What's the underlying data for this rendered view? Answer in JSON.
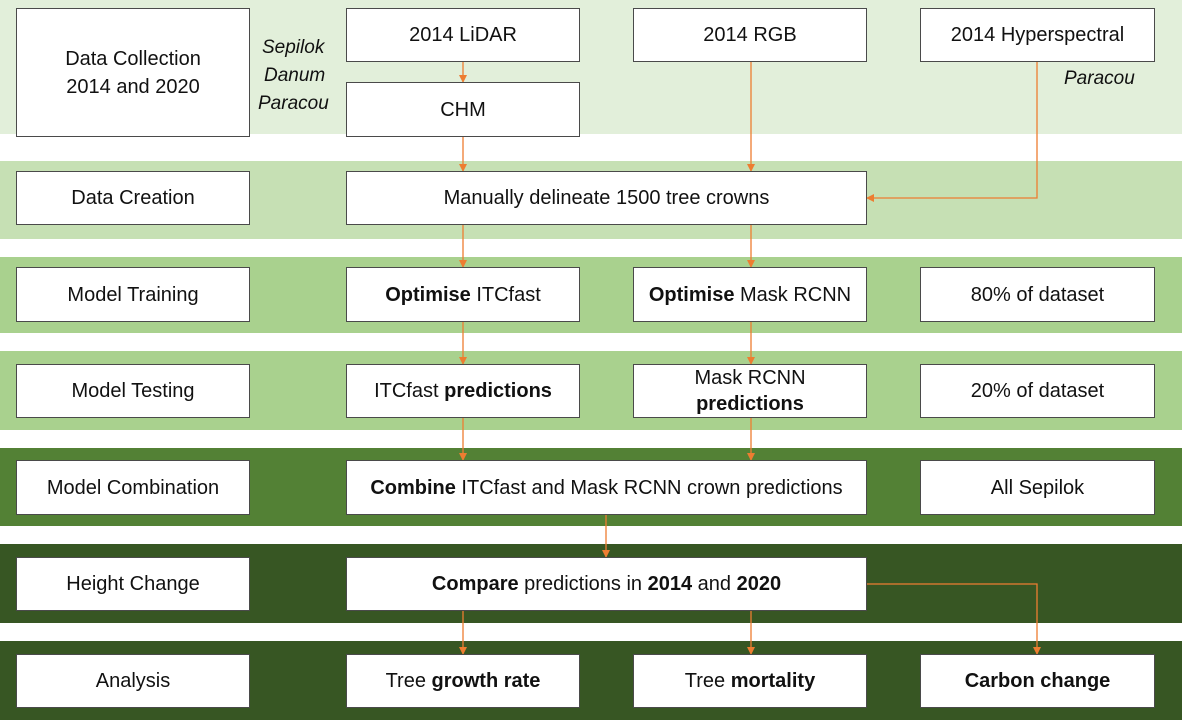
{
  "colors": {
    "band_1": "#e2efda",
    "band_2": "#c6e0b4",
    "band_3": "#a9d18e",
    "band_4": "#a9d18e",
    "band_5": "#538135",
    "band_6": "#375623",
    "band_7": "#375623",
    "arrow": "#ed7d31",
    "box_border": "#4a4a4a"
  },
  "stages": {
    "collection": "Data Collection\n2014 and 2020",
    "creation": "Data Creation",
    "training": "Model Training",
    "testing": "Model Testing",
    "combination": "Model Combination",
    "height_change": "Height Change",
    "analysis": "Analysis"
  },
  "sites": {
    "sepilok": "Sepilok",
    "danum": "Danum",
    "paracou": "Paracou",
    "paracou_hyper": "Paracou"
  },
  "collection": {
    "lidar": "2014 LiDAR",
    "chm": "CHM",
    "rgb": "2014 RGB",
    "hyper": "2014 Hyperspectral"
  },
  "creation": {
    "delineate": "Manually delineate 1500 tree crowns"
  },
  "training": {
    "itc_bold": "Optimise",
    "itc_rest": " ITCfast",
    "mask_bold": "Optimise",
    "mask_rest": " Mask RCNN",
    "share": "80% of dataset"
  },
  "testing": {
    "itc_rest": "ITCfast ",
    "itc_bold": "predictions",
    "mask_rest": "Mask RCNN",
    "mask_bold": "predictions",
    "share": "20% of dataset"
  },
  "combination": {
    "combine_bold": "Combine",
    "combine_rest": " ITCfast and Mask RCNN crown predictions",
    "scope": "All Sepilok"
  },
  "height_change": {
    "compare_bold": "Compare",
    "compare_mid": " predictions in ",
    "year_1": "2014",
    "compare_and": " and ",
    "year_2": "2020"
  },
  "analysis": {
    "growth_rest": "Tree ",
    "growth_bold": "growth rate",
    "mort_rest": "Tree ",
    "mort_bold": "mortality",
    "carbon": "Carbon change"
  }
}
